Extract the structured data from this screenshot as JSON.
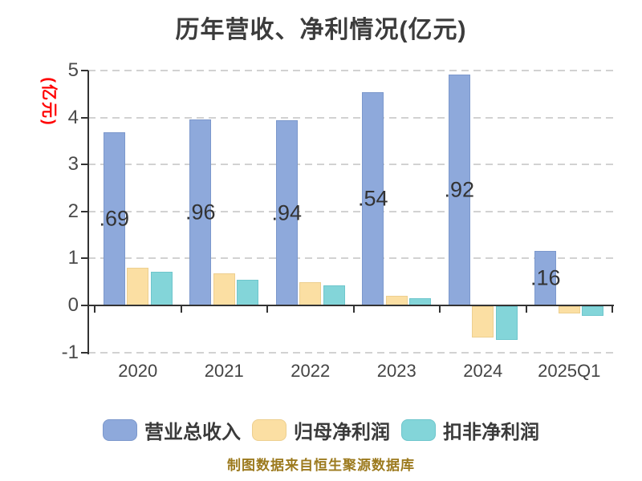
{
  "title": "历年营收、净利情况(亿元)",
  "y_axis_unit": "(亿元)",
  "footer_note": "制图数据来自恒生聚源数据库",
  "colors": {
    "background": "#FFFFFF",
    "title_text": "#3C3C3C",
    "axis_text": "#4A4A4A",
    "axis_line": "#333333",
    "gridline": "#D2D2D2",
    "unit_label_red": "#FF0000",
    "footer_text": "#9C7A1E",
    "bar_value_label": "#333333",
    "revenue_blue": "#8EA9DB",
    "net_profit_orange": "#FBDFA3",
    "deducted_profit_teal": "#83D5D9"
  },
  "legend": {
    "items": [
      {
        "label": "营业总收入",
        "color": "#8EA9DB",
        "border": "#7C98CC"
      },
      {
        "label": "归母净利润",
        "color": "#FBDFA3",
        "border": "#EDCF8F"
      },
      {
        "label": "扣非净利润",
        "color": "#83D5D9",
        "border": "#6EC6CC"
      }
    ]
  },
  "chart_data": {
    "type": "bar",
    "title": "历年营收、净利情况(亿元)",
    "ylabel": "(亿元)",
    "xlabel": "",
    "categories": [
      "2020",
      "2021",
      "2022",
      "2023",
      "2024",
      "2025Q1"
    ],
    "series": [
      {
        "key": "revenue",
        "name": "营业总收入",
        "color": "#8EA9DB",
        "border": "#7C98CC",
        "values": [
          3.69,
          3.96,
          3.94,
          4.54,
          4.92,
          1.16
        ],
        "visible_bar_labels": [
          ".69",
          ".96",
          ".94",
          ".54",
          ".92",
          ".16"
        ]
      },
      {
        "key": "net-profit",
        "name": "归母净利润",
        "color": "#FBDFA3",
        "border": "#EDCF8F",
        "values": [
          0.8,
          0.68,
          0.5,
          0.2,
          -0.67,
          -0.15
        ]
      },
      {
        "key": "deducted-net-profit",
        "name": "扣非净利润",
        "color": "#83D5D9",
        "border": "#6EC6CC",
        "values": [
          0.71,
          0.54,
          0.43,
          0.16,
          -0.71,
          -0.2
        ]
      }
    ],
    "yticks": [
      5,
      4,
      3,
      2,
      1,
      0,
      -1
    ],
    "ylim": [
      -1,
      5
    ],
    "grid_values": [
      5,
      4,
      3,
      2,
      1,
      -1
    ],
    "grid": "horizontal dashed",
    "legend_position": "bottom"
  }
}
